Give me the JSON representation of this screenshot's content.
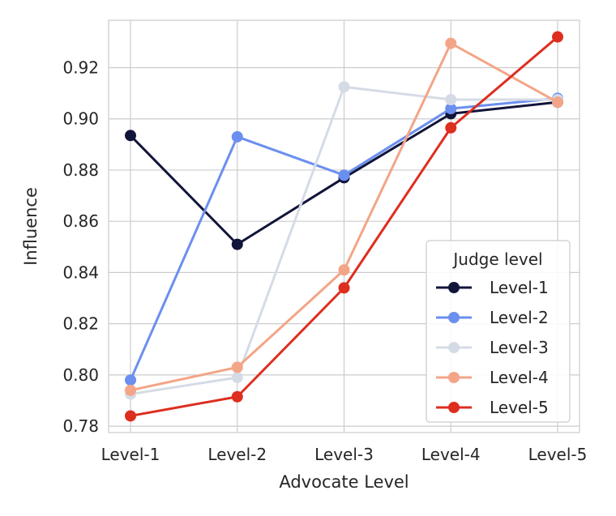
{
  "chart_data": {
    "type": "line",
    "title": "",
    "xlabel": "Advocate Level",
    "ylabel": "Influence",
    "categories": [
      "Level-1",
      "Level-2",
      "Level-3",
      "Level-4",
      "Level-5"
    ],
    "ylim": [
      0.7775,
      0.9385
    ],
    "yticks": [
      0.78,
      0.8,
      0.82,
      0.84,
      0.86,
      0.88,
      0.9,
      0.92
    ],
    "ytick_labels": [
      "0.78",
      "0.80",
      "0.82",
      "0.84",
      "0.86",
      "0.88",
      "0.90",
      "0.92"
    ],
    "grid": true,
    "legend": {
      "title": "Judge level",
      "placement": "lower-right"
    },
    "series": [
      {
        "name": "Level-1",
        "color": "#11153a",
        "values": [
          0.8935,
          0.851,
          0.877,
          0.902,
          0.9065
        ]
      },
      {
        "name": "Level-2",
        "color": "#6b8fef",
        "values": [
          0.798,
          0.893,
          0.878,
          0.904,
          0.908
        ]
      },
      {
        "name": "Level-3",
        "color": "#d5dbe6",
        "values": [
          0.7925,
          0.799,
          0.9125,
          0.9075,
          0.9075
        ]
      },
      {
        "name": "Level-4",
        "color": "#f3a587",
        "values": [
          0.794,
          0.803,
          0.841,
          0.9295,
          0.9065
        ]
      },
      {
        "name": "Level-5",
        "color": "#dd2e1f",
        "values": [
          0.784,
          0.7915,
          0.834,
          0.8965,
          0.932
        ]
      }
    ]
  }
}
